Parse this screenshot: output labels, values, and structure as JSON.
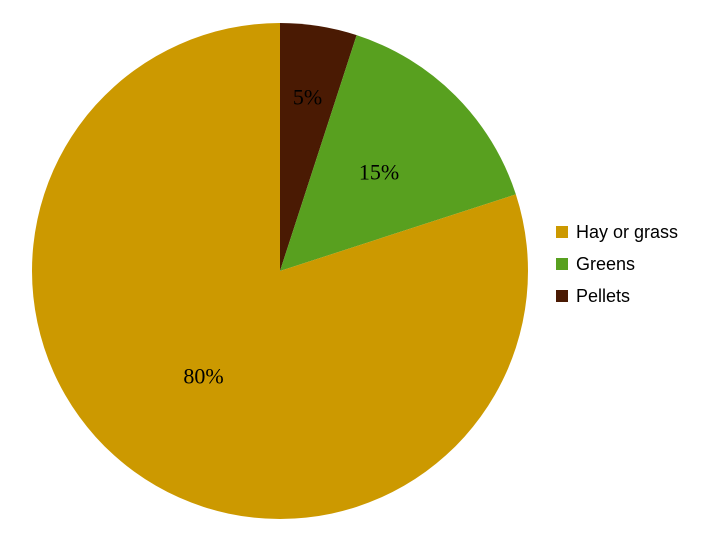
{
  "chart_data": {
    "type": "pie",
    "title": "",
    "start_angle_deg": 0,
    "direction": "clockwise",
    "legend_position": "right",
    "series": [
      {
        "name": "Pellets",
        "value": 5,
        "label": "5%",
        "color": "#4a1a03",
        "label_color": "#ffffff"
      },
      {
        "name": "Greens",
        "value": 15,
        "label": "15%",
        "color": "#58a01f",
        "label_color": "#000000"
      },
      {
        "name": "Hay or grass",
        "value": 80,
        "label": "80%",
        "color": "#cc9900",
        "label_color": "#000000"
      }
    ],
    "legend": [
      {
        "name": "Hay or grass",
        "color": "#cc9900"
      },
      {
        "name": "Greens",
        "color": "#58a01f"
      },
      {
        "name": "Pellets",
        "color": "#4a1a03"
      }
    ]
  }
}
